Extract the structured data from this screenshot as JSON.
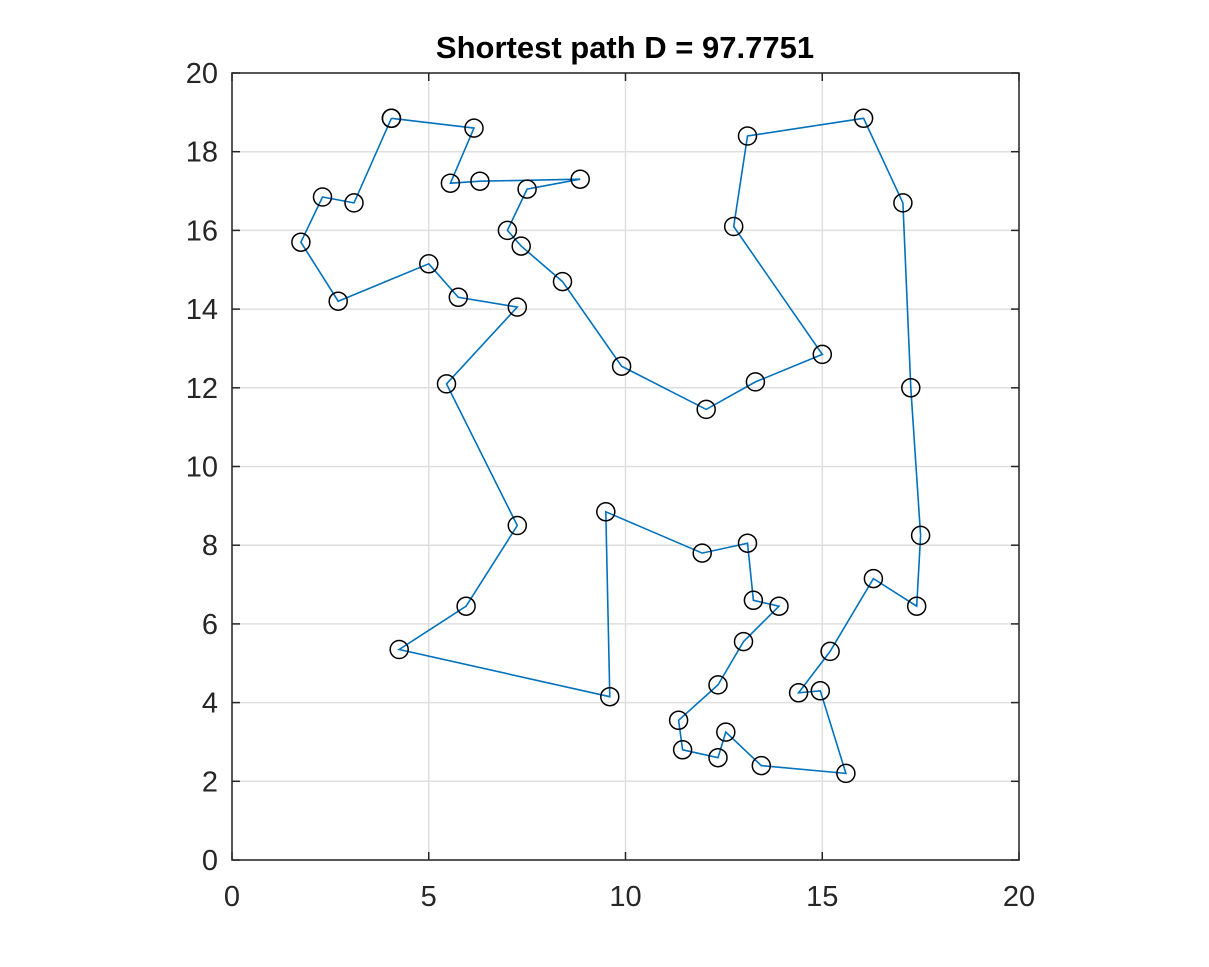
{
  "chart_data": {
    "type": "line",
    "title": "Shortest path D = 97.7751",
    "xlabel": "",
    "ylabel": "",
    "xlim": [
      0,
      20
    ],
    "ylim": [
      0,
      20
    ],
    "xticks": [
      "0",
      "5",
      "10",
      "15",
      "20"
    ],
    "yticks": [
      "0",
      "2",
      "4",
      "6",
      "8",
      "10",
      "12",
      "14",
      "16",
      "18",
      "20"
    ],
    "grid": true,
    "box": true,
    "line_color": "#0072BD",
    "marker_edge_color": "#000000",
    "marker": "circle",
    "series": [
      {
        "x": [
          4.05,
          6.15,
          5.55,
          6.3,
          8.85,
          7.5,
          7.0,
          7.35,
          8.4,
          9.9,
          12.05,
          13.3,
          15.0,
          12.75,
          13.1,
          16.05,
          17.05,
          17.25,
          17.5,
          17.4,
          16.3,
          15.2,
          14.4,
          14.95,
          15.6,
          13.45,
          12.55,
          12.35,
          11.45,
          11.35,
          12.35,
          13.0,
          13.9,
          13.25,
          13.1,
          11.95,
          9.5,
          9.6,
          4.25,
          5.95,
          7.25,
          5.45,
          7.25,
          5.75,
          5.0,
          2.7,
          1.75,
          2.3,
          3.1,
          4.05
        ],
        "y": [
          18.85,
          18.6,
          17.2,
          17.25,
          17.3,
          17.05,
          16.0,
          15.6,
          14.7,
          12.55,
          11.45,
          12.15,
          12.85,
          16.1,
          18.4,
          18.85,
          16.7,
          12.0,
          8.25,
          6.45,
          7.15,
          5.3,
          4.25,
          4.3,
          2.2,
          2.4,
          3.25,
          2.6,
          2.8,
          3.55,
          4.45,
          5.55,
          6.45,
          6.6,
          8.05,
          7.8,
          8.85,
          4.15,
          5.35,
          6.45,
          8.5,
          12.1,
          14.05,
          14.3,
          15.15,
          14.2,
          15.7,
          16.85,
          16.7,
          18.85
        ]
      }
    ]
  }
}
